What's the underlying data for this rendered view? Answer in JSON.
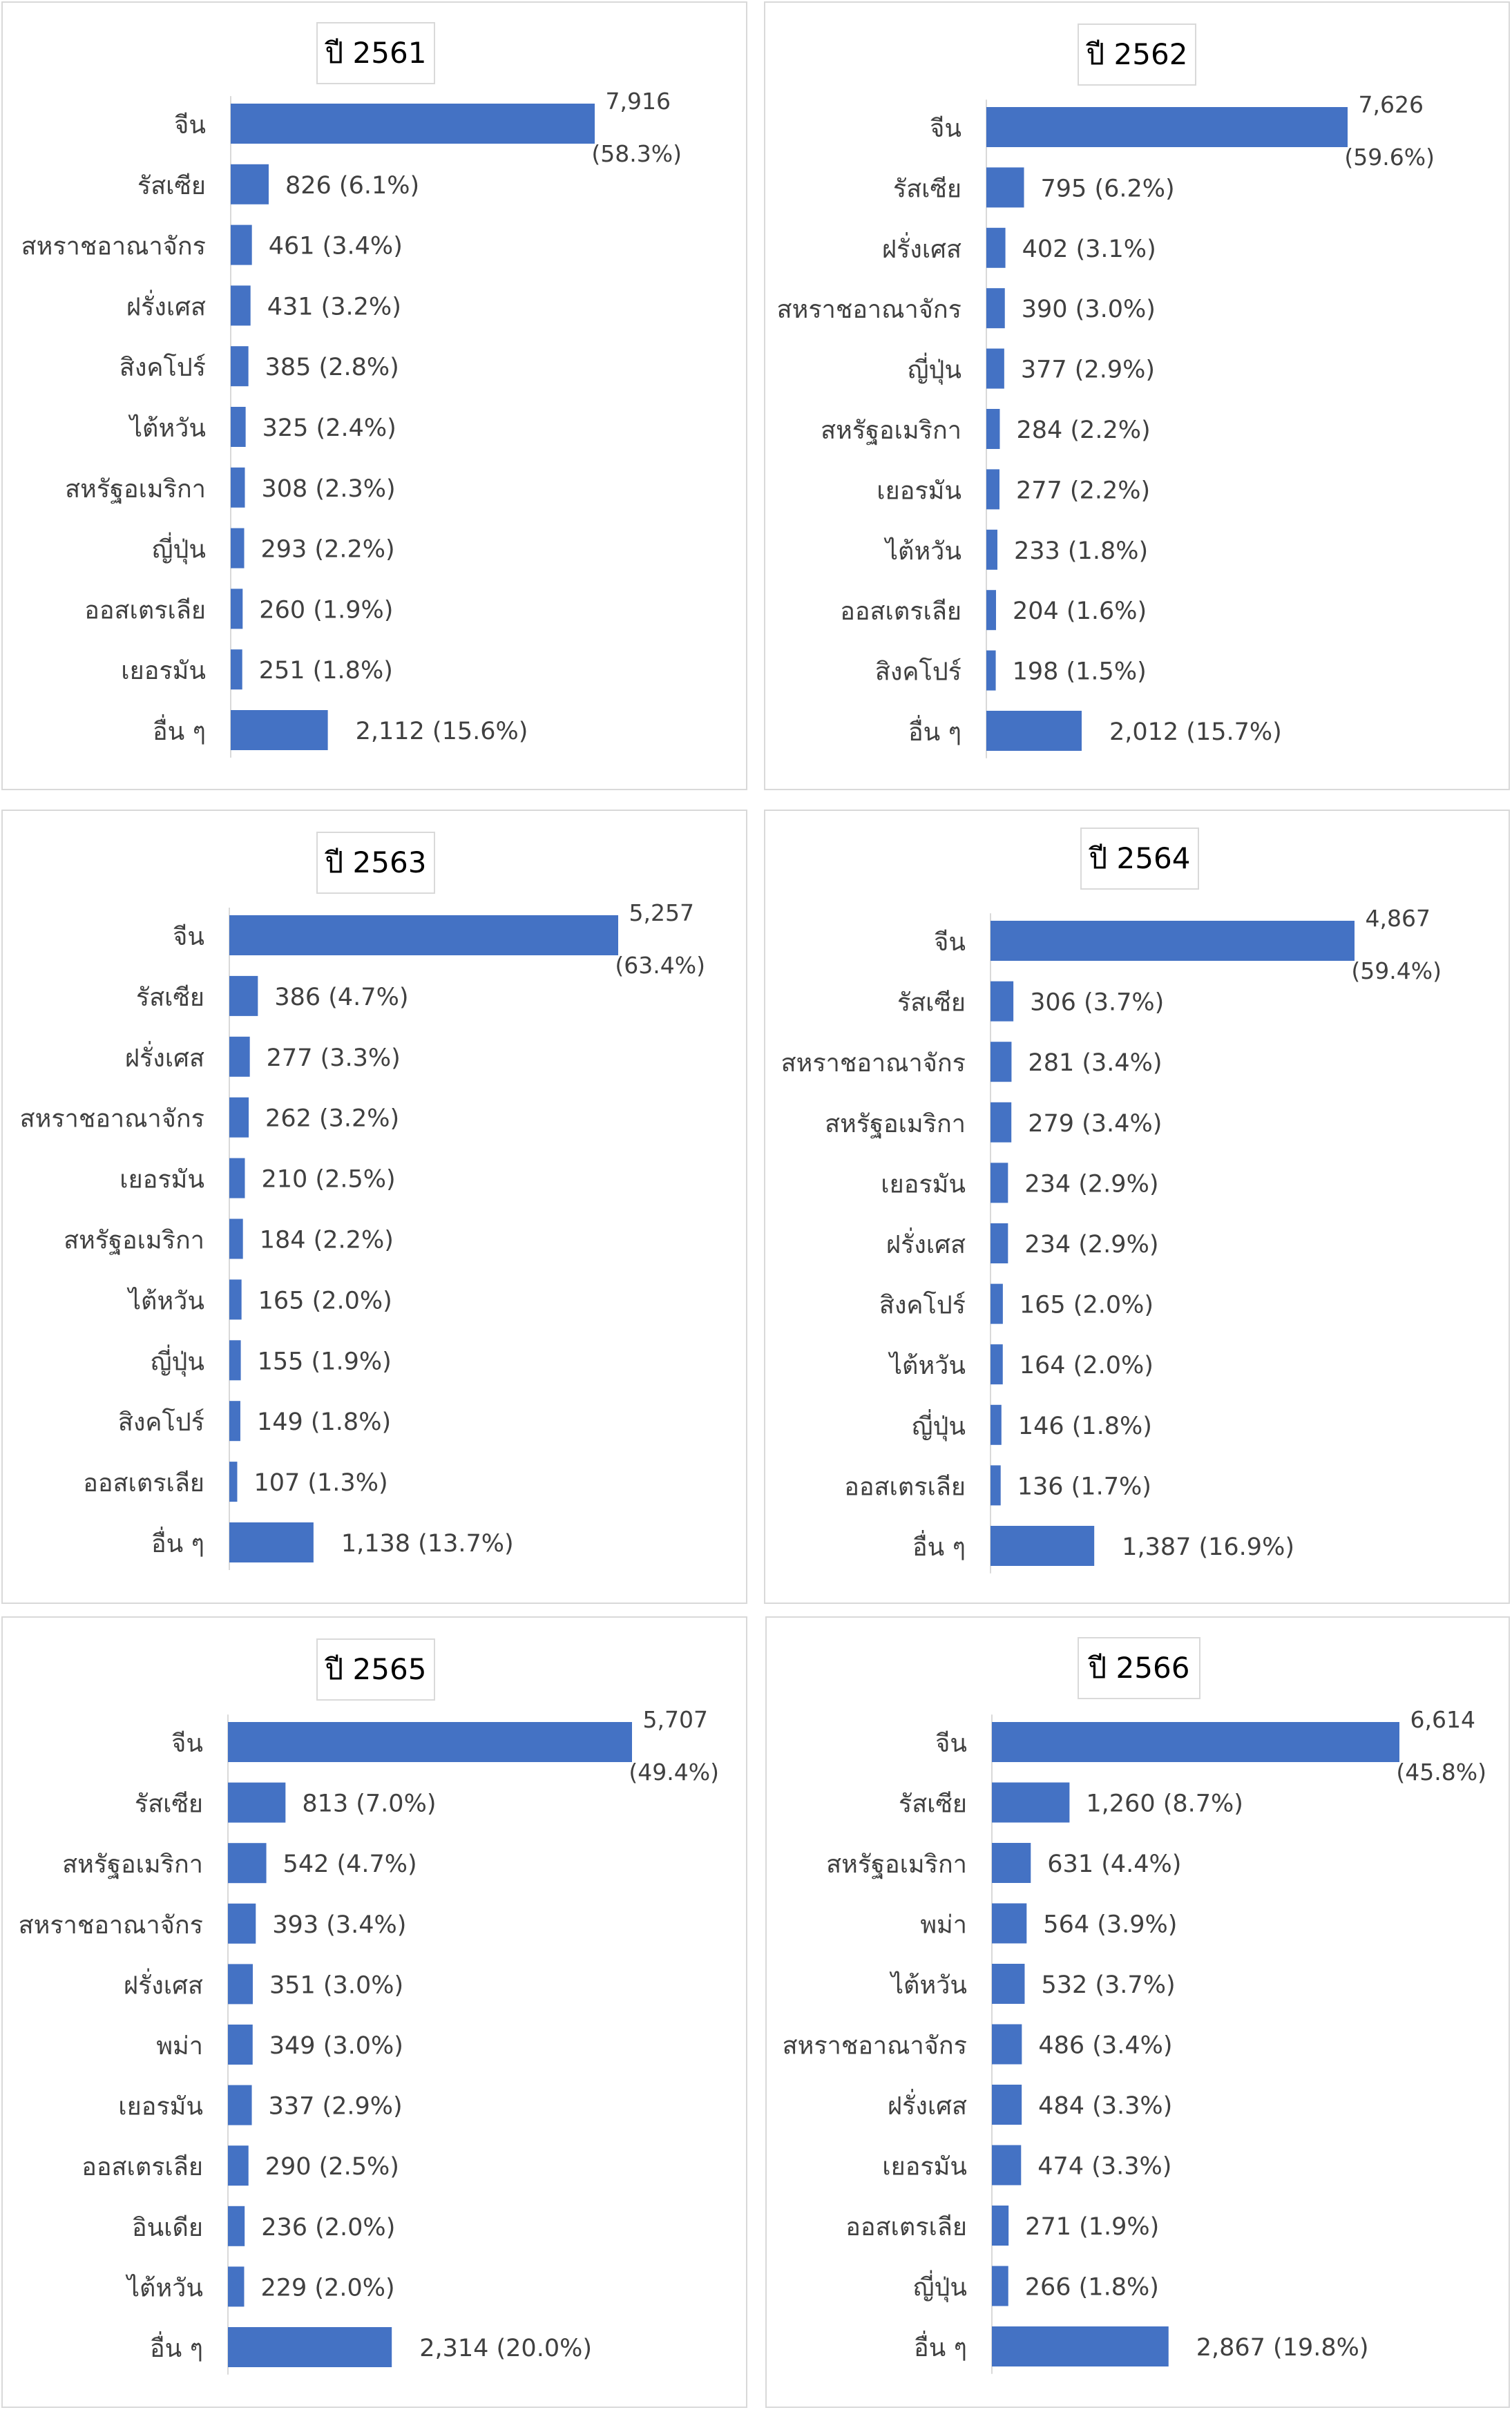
{
  "colors": {
    "bar": "#4472C4",
    "text": "#404040",
    "axis": "#d9d9d9",
    "border": "#d9d9d9"
  },
  "chart_data": [
    {
      "type": "bar",
      "orientation": "horizontal",
      "title": "ปี 2561",
      "categories": [
        "จีน",
        "รัสเซีย",
        "สหราชอาณาจักร",
        "ฝรั่งเศส",
        "สิงคโปร์",
        "ไต้หวัน",
        "สหรัฐอเมริกา",
        "ญี่ปุ่น",
        "ออสเตรเลีย",
        "เยอรมัน",
        "อื่น ๆ"
      ],
      "values": [
        7916,
        826,
        461,
        431,
        385,
        325,
        308,
        293,
        260,
        251,
        2112
      ],
      "data_labels": [
        "7,916",
        "826 (6.1%)",
        "461 (3.4%)",
        "431 (3.2%)",
        "385 (2.8%)",
        "325 (2.4%)",
        "308 (2.3%)",
        "293 (2.2%)",
        "260 (1.9%)",
        "251 (1.8%)",
        "2,112 (15.6%)"
      ],
      "first_label_share": "(58.3%)"
    },
    {
      "type": "bar",
      "orientation": "horizontal",
      "title": "ปี 2562",
      "categories": [
        "จีน",
        "รัสเซีย",
        "ฝรั่งเศส",
        "สหราชอาณาจักร",
        "ญี่ปุ่น",
        "สหรัฐอเมริกา",
        "เยอรมัน",
        "ไต้หวัน",
        "ออสเตรเลีย",
        "สิงคโปร์",
        "อื่น ๆ"
      ],
      "values": [
        7626,
        795,
        402,
        390,
        377,
        284,
        277,
        233,
        204,
        198,
        2012
      ],
      "data_labels": [
        "7,626",
        "795 (6.2%)",
        "402 (3.1%)",
        "390 (3.0%)",
        "377 (2.9%)",
        "284 (2.2%)",
        "277 (2.2%)",
        "233 (1.8%)",
        "204 (1.6%)",
        "198 (1.5%)",
        "2,012 (15.7%)"
      ],
      "first_label_share": "(59.6%)"
    },
    {
      "type": "bar",
      "orientation": "horizontal",
      "title": "ปี 2563",
      "categories": [
        "จีน",
        "รัสเซีย",
        "ฝรั่งเศส",
        "สหราชอาณาจักร",
        "เยอรมัน",
        "สหรัฐอเมริกา",
        "ไต้หวัน",
        "ญี่ปุ่น",
        "สิงคโปร์",
        "ออสเตรเลีย",
        "อื่น ๆ"
      ],
      "values": [
        5257,
        386,
        277,
        262,
        210,
        184,
        165,
        155,
        149,
        107,
        1138
      ],
      "data_labels": [
        "5,257",
        "386 (4.7%)",
        "277 (3.3%)",
        "262 (3.2%)",
        "210 (2.5%)",
        "184 (2.2%)",
        "165 (2.0%)",
        "155 (1.9%)",
        "149 (1.8%)",
        "107 (1.3%)",
        "1,138 (13.7%)"
      ],
      "first_label_share": "(63.4%)"
    },
    {
      "type": "bar",
      "orientation": "horizontal",
      "title": "ปี 2564",
      "categories": [
        "จีน",
        "รัสเซีย",
        "สหราชอาณาจักร",
        "สหรัฐอเมริกา",
        "เยอรมัน",
        "ฝรั่งเศส",
        "สิงคโปร์",
        "ไต้หวัน",
        "ญี่ปุ่น",
        "ออสเตรเลีย",
        "อื่น ๆ"
      ],
      "values": [
        4867,
        306,
        281,
        279,
        234,
        234,
        165,
        164,
        146,
        136,
        1387
      ],
      "data_labels": [
        "4,867",
        "306 (3.7%)",
        "281 (3.4%)",
        "279 (3.4%)",
        "234 (2.9%)",
        "234 (2.9%)",
        "165 (2.0%)",
        "164 (2.0%)",
        "146 (1.8%)",
        "136 (1.7%)",
        "1,387 (16.9%)"
      ],
      "first_label_share": "(59.4%)"
    },
    {
      "type": "bar",
      "orientation": "horizontal",
      "title": "ปี 2565",
      "categories": [
        "จีน",
        "รัสเซีย",
        "สหรัฐอเมริกา",
        "สหราชอาณาจักร",
        "ฝรั่งเศส",
        "พม่า",
        "เยอรมัน",
        "ออสเตรเลีย",
        "อินเดีย",
        "ไต้หวัน",
        "อื่น ๆ"
      ],
      "values": [
        5707,
        813,
        542,
        393,
        351,
        349,
        337,
        290,
        236,
        229,
        2314
      ],
      "data_labels": [
        "5,707",
        "813 (7.0%)",
        "542 (4.7%)",
        "393 (3.4%)",
        "351 (3.0%)",
        "349 (3.0%)",
        "337 (2.9%)",
        "290 (2.5%)",
        "236 (2.0%)",
        "229 (2.0%)",
        "2,314 (20.0%)"
      ],
      "first_label_share": "(49.4%)"
    },
    {
      "type": "bar",
      "orientation": "horizontal",
      "title": "ปี 2566",
      "categories": [
        "จีน",
        "รัสเซีย",
        "สหรัฐอเมริกา",
        "พม่า",
        "ไต้หวัน",
        "สหราชอาณาจักร",
        "ฝรั่งเศส",
        "เยอรมัน",
        "ออสเตรเลีย",
        "ญี่ปุ่น",
        "อื่น ๆ"
      ],
      "values": [
        6614,
        1260,
        631,
        564,
        532,
        486,
        484,
        474,
        271,
        266,
        2867
      ],
      "data_labels": [
        "6,614",
        "1,260 (8.7%)",
        "631 (4.4%)",
        "564 (3.9%)",
        "532 (3.7%)",
        "486 (3.4%)",
        "484 (3.3%)",
        "474 (3.3%)",
        "271 (1.9%)",
        "266 (1.8%)",
        "2,867 (19.8%)"
      ],
      "first_label_share": "(45.8%)"
    }
  ]
}
